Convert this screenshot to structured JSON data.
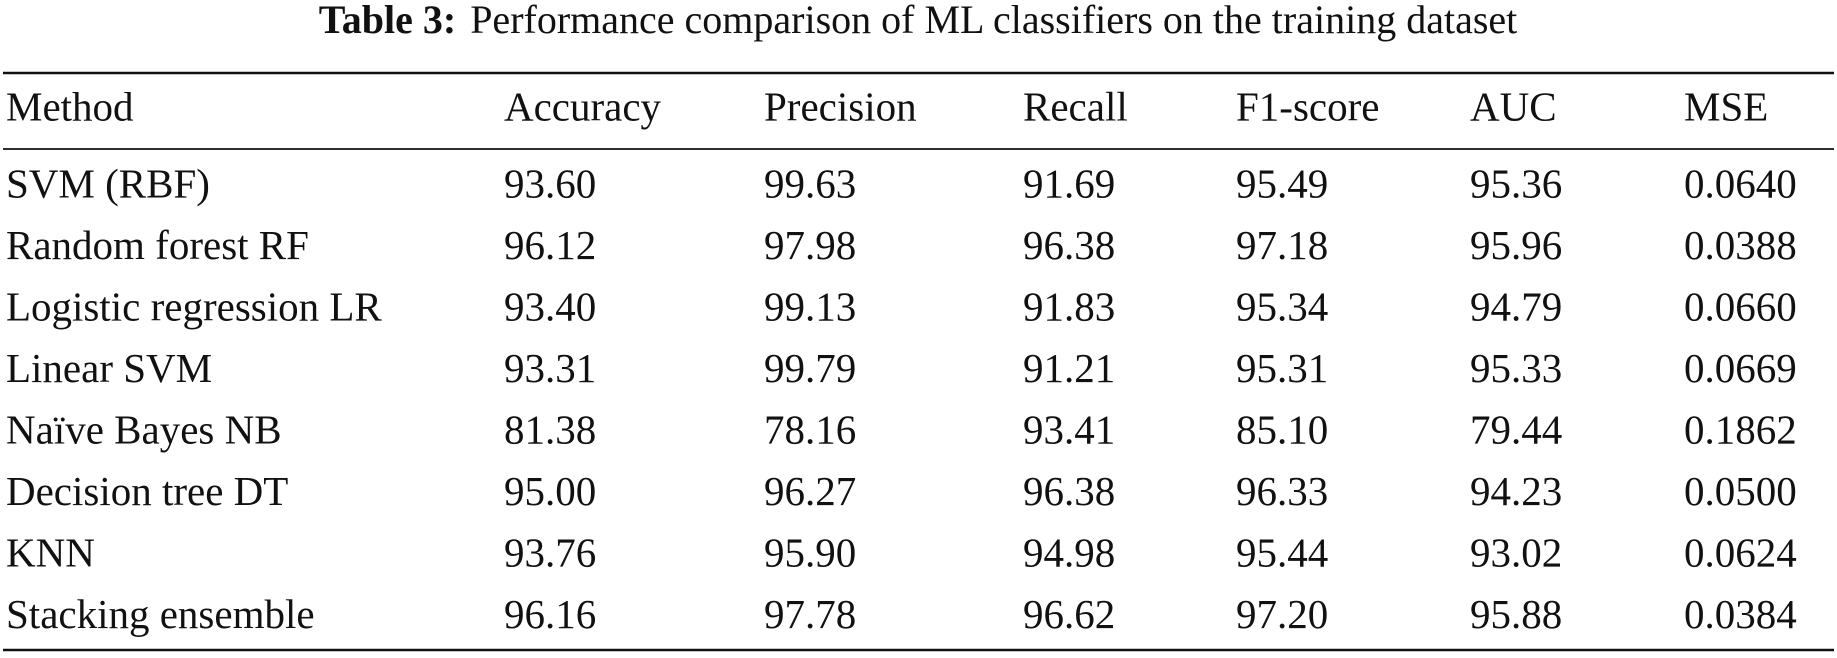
{
  "caption": {
    "label": "Table 3:",
    "text": "Performance comparison of ML classifiers on the training dataset"
  },
  "table": {
    "columns": [
      "Method",
      "Accuracy",
      "Precision",
      "Recall",
      "F1-score",
      "AUC",
      "MSE"
    ],
    "rows": [
      [
        "SVM (RBF)",
        "93.60",
        "99.63",
        "91.69",
        "95.49",
        "95.36",
        "0.0640"
      ],
      [
        "Random forest RF",
        "96.12",
        "97.98",
        "96.38",
        "97.18",
        "95.96",
        "0.0388"
      ],
      [
        "Logistic regression LR",
        "93.40",
        "99.13",
        "91.83",
        "95.34",
        "94.79",
        "0.0660"
      ],
      [
        "Linear SVM",
        "93.31",
        "99.79",
        "91.21",
        "95.31",
        "95.33",
        "0.0669"
      ],
      [
        "Naïve Bayes NB",
        "81.38",
        "78.16",
        "93.41",
        "85.10",
        "79.44",
        "0.1862"
      ],
      [
        "Decision tree DT",
        "95.00",
        "96.27",
        "96.38",
        "96.33",
        "94.23",
        "0.0500"
      ],
      [
        "KNN",
        "93.76",
        "95.90",
        "94.98",
        "95.44",
        "93.02",
        "0.0624"
      ],
      [
        "Stacking ensemble",
        "96.16",
        "97.78",
        "96.62",
        "97.20",
        "95.88",
        "0.0384"
      ]
    ]
  }
}
